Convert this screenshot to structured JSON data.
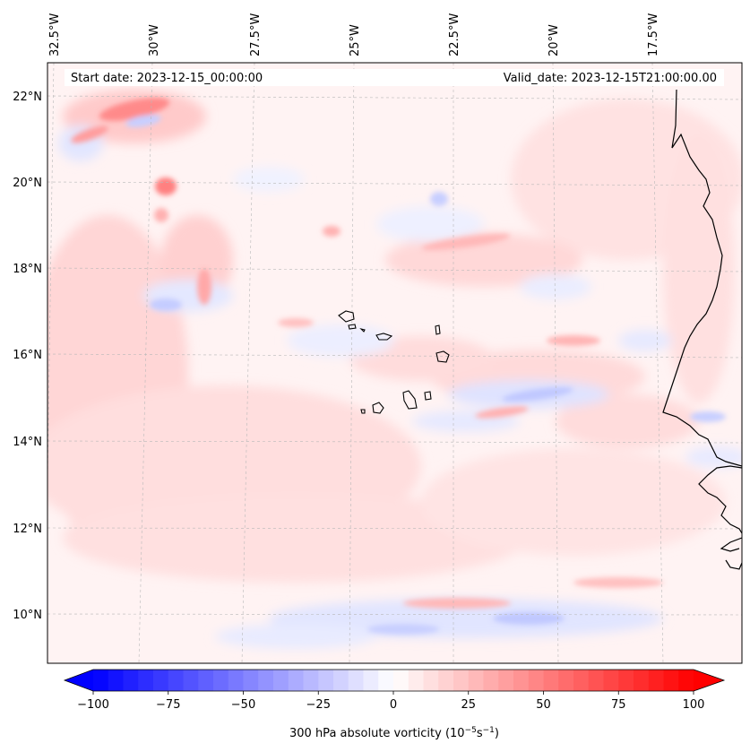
{
  "header": {
    "start_date": "Start date: 2023-12-15_00:00:00",
    "valid_date": "Valid_date: 2023-12-15T21:00:00.00"
  },
  "map": {
    "lon_labels": [
      "32.5°W",
      "30°W",
      "27.5°W",
      "25°W",
      "22.5°W",
      "20°W",
      "17.5°W"
    ],
    "lat_labels": [
      "22°N",
      "20°N",
      "18°N",
      "16°N",
      "14°N",
      "12°N",
      "10°N"
    ],
    "gridlines": true,
    "coastline_color": "#000000"
  },
  "colorbar": {
    "min": -100,
    "max": 100,
    "tick_labels": [
      "−100",
      "−75",
      "−50",
      "−25",
      "0",
      "25",
      "50",
      "75",
      "100"
    ],
    "label_prefix": "300 hPa absolute vorticity (10",
    "label_exp1": "−5",
    "label_mid": "s",
    "label_exp2": "−1",
    "label_suffix": ")",
    "extend": "both",
    "colormap": "bwr",
    "low_color": "#0000ff",
    "mid_color": "#ffffff",
    "high_color": "#ff0000"
  }
}
